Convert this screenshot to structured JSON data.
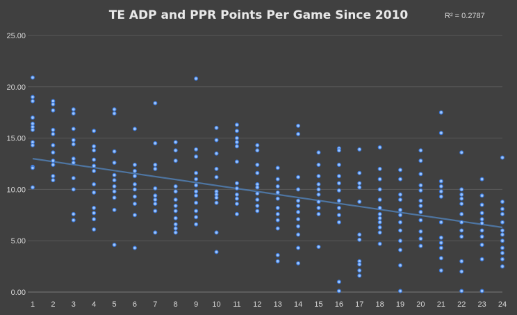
{
  "chart_data": {
    "type": "scatter",
    "title": "TE ADP and PPR Points Per Game Since 2010",
    "annotation": "R² = 0.2787",
    "xlabel": "",
    "ylabel": "",
    "xlim": [
      1,
      24
    ],
    "ylim": [
      0,
      25
    ],
    "x_ticks": [
      "1",
      "2",
      "3",
      "4",
      "5",
      "6",
      "7",
      "8",
      "9",
      "10",
      "11",
      "12",
      "13",
      "14",
      "15",
      "16",
      "17",
      "18",
      "19",
      "20",
      "21",
      "22",
      "23",
      "24"
    ],
    "y_ticks": [
      "0.00",
      "5.00",
      "10.00",
      "15.00",
      "20.00",
      "25.00"
    ],
    "grid": true,
    "legend": "none",
    "colors": {
      "background": "#404040",
      "points": "#8fbfff",
      "trendline": "#4f78a7",
      "grid": "#595959"
    },
    "trendline": {
      "type": "linear",
      "start": [
        1,
        13.0
      ],
      "end": [
        24,
        6.3
      ]
    },
    "points": [
      [
        1,
        20.9
      ],
      [
        1,
        19.0
      ],
      [
        1,
        18.6
      ],
      [
        1,
        17.0
      ],
      [
        1,
        16.4
      ],
      [
        1,
        16.1
      ],
      [
        1,
        15.8
      ],
      [
        1,
        14.6
      ],
      [
        1,
        14.3
      ],
      [
        1,
        12.2
      ],
      [
        1,
        12.1
      ],
      [
        1,
        10.2
      ],
      [
        2,
        18.6
      ],
      [
        2,
        18.3
      ],
      [
        2,
        17.7
      ],
      [
        2,
        15.8
      ],
      [
        2,
        15.4
      ],
      [
        2,
        14.3
      ],
      [
        2,
        13.6
      ],
      [
        2,
        12.8
      ],
      [
        2,
        12.4
      ],
      [
        2,
        11.3
      ],
      [
        2,
        10.9
      ],
      [
        3,
        17.8
      ],
      [
        3,
        17.4
      ],
      [
        3,
        15.9
      ],
      [
        3,
        14.8
      ],
      [
        3,
        14.4
      ],
      [
        3,
        13.0
      ],
      [
        3,
        12.6
      ],
      [
        3,
        11.1
      ],
      [
        3,
        10.0
      ],
      [
        3,
        7.6
      ],
      [
        3,
        7.0
      ],
      [
        4,
        15.7
      ],
      [
        4,
        14.2
      ],
      [
        4,
        13.8
      ],
      [
        4,
        12.9
      ],
      [
        4,
        12.3
      ],
      [
        4,
        11.8
      ],
      [
        4,
        10.5
      ],
      [
        4,
        9.7
      ],
      [
        4,
        8.2
      ],
      [
        4,
        7.7
      ],
      [
        4,
        7.1
      ],
      [
        4,
        6.1
      ],
      [
        5,
        17.8
      ],
      [
        5,
        17.4
      ],
      [
        5,
        13.7
      ],
      [
        5,
        12.6
      ],
      [
        5,
        11.4
      ],
      [
        5,
        10.9
      ],
      [
        5,
        10.3
      ],
      [
        5,
        9.8
      ],
      [
        5,
        9.2
      ],
      [
        5,
        8.0
      ],
      [
        5,
        4.6
      ],
      [
        6,
        15.9
      ],
      [
        6,
        12.4
      ],
      [
        6,
        11.8
      ],
      [
        6,
        11.3
      ],
      [
        6,
        10.5
      ],
      [
        6,
        10.0
      ],
      [
        6,
        9.3
      ],
      [
        6,
        8.6
      ],
      [
        6,
        7.5
      ],
      [
        6,
        4.3
      ],
      [
        7,
        18.4
      ],
      [
        7,
        14.5
      ],
      [
        7,
        12.4
      ],
      [
        7,
        12.0
      ],
      [
        7,
        10.1
      ],
      [
        7,
        9.4
      ],
      [
        7,
        9.0
      ],
      [
        7,
        8.6
      ],
      [
        7,
        7.9
      ],
      [
        7,
        5.8
      ],
      [
        8,
        14.6
      ],
      [
        8,
        13.8
      ],
      [
        8,
        12.8
      ],
      [
        8,
        10.3
      ],
      [
        8,
        9.8
      ],
      [
        8,
        9.0
      ],
      [
        8,
        8.4
      ],
      [
        8,
        7.9
      ],
      [
        8,
        7.2
      ],
      [
        8,
        6.6
      ],
      [
        8,
        6.2
      ],
      [
        8,
        5.8
      ],
      [
        9,
        20.8
      ],
      [
        9,
        13.9
      ],
      [
        9,
        13.2
      ],
      [
        9,
        11.6
      ],
      [
        9,
        11.0
      ],
      [
        9,
        10.4
      ],
      [
        9,
        9.8
      ],
      [
        9,
        9.4
      ],
      [
        9,
        8.7
      ],
      [
        9,
        7.9
      ],
      [
        9,
        7.3
      ],
      [
        9,
        6.6
      ],
      [
        10,
        16.0
      ],
      [
        10,
        14.8
      ],
      [
        10,
        13.5
      ],
      [
        10,
        12.0
      ],
      [
        10,
        11.2
      ],
      [
        10,
        9.8
      ],
      [
        10,
        9.5
      ],
      [
        10,
        9.2
      ],
      [
        10,
        8.7
      ],
      [
        10,
        5.8
      ],
      [
        10,
        3.9
      ],
      [
        11,
        16.3
      ],
      [
        11,
        15.7
      ],
      [
        11,
        15.0
      ],
      [
        11,
        14.6
      ],
      [
        11,
        14.2
      ],
      [
        11,
        12.7
      ],
      [
        11,
        10.6
      ],
      [
        11,
        10.1
      ],
      [
        11,
        9.5
      ],
      [
        11,
        9.1
      ],
      [
        11,
        8.6
      ],
      [
        11,
        7.6
      ],
      [
        12,
        14.3
      ],
      [
        12,
        13.8
      ],
      [
        12,
        12.4
      ],
      [
        12,
        11.6
      ],
      [
        12,
        10.5
      ],
      [
        12,
        10.2
      ],
      [
        12,
        9.6
      ],
      [
        12,
        9.0
      ],
      [
        12,
        8.4
      ],
      [
        12,
        7.9
      ],
      [
        13,
        12.1
      ],
      [
        13,
        11.0
      ],
      [
        13,
        10.3
      ],
      [
        13,
        9.7
      ],
      [
        13,
        9.1
      ],
      [
        13,
        8.2
      ],
      [
        13,
        7.6
      ],
      [
        13,
        7.0
      ],
      [
        13,
        6.2
      ],
      [
        13,
        3.6
      ],
      [
        13,
        3.0
      ],
      [
        14,
        16.2
      ],
      [
        14,
        15.4
      ],
      [
        14,
        11.2
      ],
      [
        14,
        10.0
      ],
      [
        14,
        8.9
      ],
      [
        14,
        8.4
      ],
      [
        14,
        7.8
      ],
      [
        14,
        7.1
      ],
      [
        14,
        6.4
      ],
      [
        14,
        5.6
      ],
      [
        14,
        4.3
      ],
      [
        14,
        2.8
      ],
      [
        15,
        13.6
      ],
      [
        15,
        12.4
      ],
      [
        15,
        11.3
      ],
      [
        15,
        10.5
      ],
      [
        15,
        10.0
      ],
      [
        15,
        9.5
      ],
      [
        15,
        8.8
      ],
      [
        15,
        8.2
      ],
      [
        15,
        7.6
      ],
      [
        15,
        4.4
      ],
      [
        16,
        14.0
      ],
      [
        16,
        13.8
      ],
      [
        16,
        12.4
      ],
      [
        16,
        11.3
      ],
      [
        16,
        10.6
      ],
      [
        16,
        9.9
      ],
      [
        16,
        8.9
      ],
      [
        16,
        8.2
      ],
      [
        16,
        7.5
      ],
      [
        16,
        6.8
      ],
      [
        16,
        1.0
      ],
      [
        16,
        0.1
      ],
      [
        17,
        13.9
      ],
      [
        17,
        11.6
      ],
      [
        17,
        10.6
      ],
      [
        17,
        10.2
      ],
      [
        17,
        8.8
      ],
      [
        17,
        5.6
      ],
      [
        17,
        5.1
      ],
      [
        17,
        3.0
      ],
      [
        17,
        2.7
      ],
      [
        17,
        2.1
      ],
      [
        17,
        1.6
      ],
      [
        18,
        14.1
      ],
      [
        18,
        12.0
      ],
      [
        18,
        11.0
      ],
      [
        18,
        10.0
      ],
      [
        18,
        9.0
      ],
      [
        18,
        8.2
      ],
      [
        18,
        7.6
      ],
      [
        18,
        7.2
      ],
      [
        18,
        6.8
      ],
      [
        18,
        6.3
      ],
      [
        18,
        5.8
      ],
      [
        18,
        4.7
      ],
      [
        19,
        11.9
      ],
      [
        19,
        11.0
      ],
      [
        19,
        9.5
      ],
      [
        19,
        9.0
      ],
      [
        19,
        8.0
      ],
      [
        19,
        7.5
      ],
      [
        19,
        6.8
      ],
      [
        19,
        6.0
      ],
      [
        19,
        5.0
      ],
      [
        19,
        4.1
      ],
      [
        19,
        2.6
      ],
      [
        19,
        0.1
      ],
      [
        20,
        13.8
      ],
      [
        20,
        12.8
      ],
      [
        20,
        11.5
      ],
      [
        20,
        10.4
      ],
      [
        20,
        9.9
      ],
      [
        20,
        8.9
      ],
      [
        20,
        8.4
      ],
      [
        20,
        7.8
      ],
      [
        20,
        7.0
      ],
      [
        20,
        5.9
      ],
      [
        20,
        5.2
      ],
      [
        20,
        4.5
      ],
      [
        21,
        17.5
      ],
      [
        21,
        15.5
      ],
      [
        21,
        10.8
      ],
      [
        21,
        10.3
      ],
      [
        21,
        9.8
      ],
      [
        21,
        9.3
      ],
      [
        21,
        6.8
      ],
      [
        21,
        5.3
      ],
      [
        21,
        4.8
      ],
      [
        21,
        4.3
      ],
      [
        21,
        3.3
      ],
      [
        21,
        2.1
      ],
      [
        22,
        13.6
      ],
      [
        22,
        10.0
      ],
      [
        22,
        9.5
      ],
      [
        22,
        9.1
      ],
      [
        22,
        8.6
      ],
      [
        22,
        7.6
      ],
      [
        22,
        6.8
      ],
      [
        22,
        6.0
      ],
      [
        22,
        5.4
      ],
      [
        22,
        3.0
      ],
      [
        22,
        2.0
      ],
      [
        22,
        0.1
      ],
      [
        23,
        11.0
      ],
      [
        23,
        9.4
      ],
      [
        23,
        8.5
      ],
      [
        23,
        7.7
      ],
      [
        23,
        7.1
      ],
      [
        23,
        6.7
      ],
      [
        23,
        6.0
      ],
      [
        23,
        5.4
      ],
      [
        23,
        4.6
      ],
      [
        23,
        3.2
      ],
      [
        23,
        0.1
      ],
      [
        24,
        13.1
      ],
      [
        24,
        8.8
      ],
      [
        24,
        8.1
      ],
      [
        24,
        7.6
      ],
      [
        24,
        6.8
      ],
      [
        24,
        6.0
      ],
      [
        24,
        5.6
      ],
      [
        24,
        5.0
      ],
      [
        24,
        4.3
      ],
      [
        24,
        3.8
      ],
      [
        24,
        3.2
      ],
      [
        24,
        2.5
      ]
    ]
  }
}
